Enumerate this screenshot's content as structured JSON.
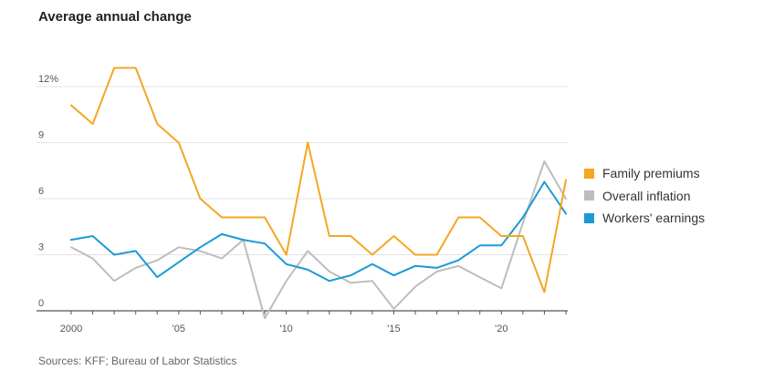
{
  "chart_data": {
    "type": "line",
    "title": "Average annual change",
    "source": "Sources: KFF; Bureau of Labor Statistics",
    "x": [
      2000,
      2001,
      2002,
      2003,
      2004,
      2005,
      2006,
      2007,
      2008,
      2009,
      2010,
      2011,
      2012,
      2013,
      2014,
      2015,
      2016,
      2017,
      2018,
      2019,
      2020,
      2021,
      2022,
      2023
    ],
    "ylim": [
      0,
      13
    ],
    "y_ticks": [
      {
        "value": 0,
        "label": "0"
      },
      {
        "value": 3,
        "label": "3"
      },
      {
        "value": 6,
        "label": "6"
      },
      {
        "value": 9,
        "label": "9"
      },
      {
        "value": 12,
        "label": "12%"
      }
    ],
    "x_ticks": [
      {
        "value": 2000,
        "label": "2000"
      },
      {
        "value": 2005,
        "label": "'05"
      },
      {
        "value": 2010,
        "label": "'10"
      },
      {
        "value": 2015,
        "label": "'15"
      },
      {
        "value": 2020,
        "label": "'20"
      }
    ],
    "grid": true,
    "legend_position": "right",
    "series": [
      {
        "name": "Family premiums",
        "color": "#f5a623",
        "values": [
          11,
          10,
          13,
          13,
          10,
          9,
          6,
          5,
          5,
          5,
          3,
          9,
          4,
          4,
          3,
          4,
          3,
          3,
          5,
          5,
          4,
          4,
          1,
          7
        ]
      },
      {
        "name": "Overall inflation",
        "color": "#bdbdbd",
        "values": [
          3.4,
          2.8,
          1.6,
          2.3,
          2.7,
          3.4,
          3.2,
          2.8,
          3.8,
          -0.4,
          1.6,
          3.2,
          2.1,
          1.5,
          1.6,
          0.1,
          1.3,
          2.1,
          2.4,
          1.8,
          1.2,
          4.7,
          8.0,
          6.0
        ]
      },
      {
        "name": "Workers' earnings",
        "color": "#1a9ad6",
        "values": [
          3.8,
          4.0,
          3.0,
          3.2,
          1.8,
          2.6,
          3.4,
          4.1,
          3.8,
          3.6,
          2.5,
          2.2,
          1.6,
          1.9,
          2.5,
          1.9,
          2.4,
          2.3,
          2.7,
          3.5,
          3.5,
          5.0,
          6.9,
          5.2
        ]
      }
    ]
  }
}
